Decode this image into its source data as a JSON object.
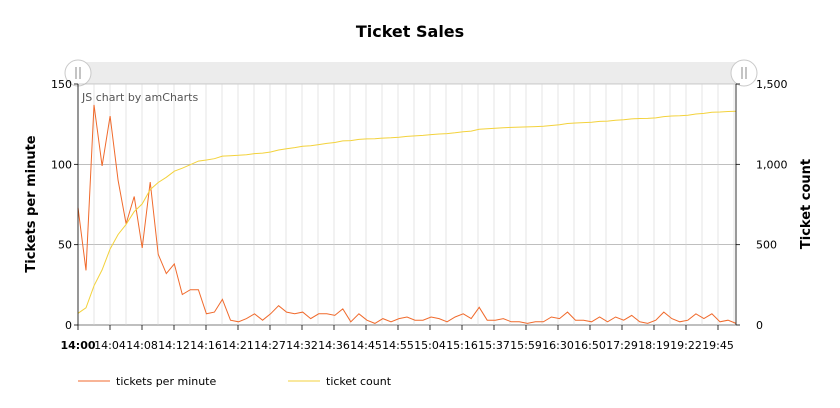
{
  "colors": {
    "tickets_per_minute": "#f06a2c",
    "ticket_count": "#f3d23c",
    "grid": "#cccccc",
    "scrollbar_bg": "#ececec"
  },
  "credit": "JS chart by amCharts",
  "chart_data": {
    "type": "line",
    "title": "Ticket Sales",
    "xlabel": "",
    "y_left_label": "Tickets per minute",
    "y_right_label": "Ticket count",
    "y_left_lim": [
      0,
      150
    ],
    "y_right_lim": [
      0,
      1500
    ],
    "y_left_ticks": [
      "0",
      "50",
      "100",
      "150"
    ],
    "y_right_ticks": [
      "0",
      "500",
      "1,000",
      "1,500"
    ],
    "x_tick_labels": [
      "14:00",
      "14:04",
      "14:08",
      "14:12",
      "14:16",
      "14:21",
      "14:27",
      "14:32",
      "14:36",
      "14:45",
      "14:55",
      "15:04",
      "15:16",
      "15:37",
      "15:59",
      "16:30",
      "16:50",
      "17:29",
      "18:19",
      "19:22",
      "19:45"
    ],
    "grid": true,
    "legend_position": "bottom-left",
    "series": [
      {
        "name": "tickets per minute",
        "axis": "left",
        "values": [
          73,
          34,
          137,
          99,
          130,
          90,
          63,
          80,
          48,
          89,
          44,
          32,
          38,
          19,
          22,
          22,
          7,
          8,
          16,
          3,
          2,
          4,
          7,
          3,
          7,
          12,
          8,
          7,
          8,
          4,
          7,
          7,
          6,
          10,
          2,
          7,
          3,
          1,
          4,
          2,
          4,
          5,
          3,
          3,
          5,
          4,
          2,
          5,
          7,
          4,
          11,
          3,
          3,
          4,
          2,
          2,
          1,
          2,
          2,
          5,
          4,
          8,
          3,
          3,
          2,
          5,
          2,
          5,
          3,
          6,
          2,
          1,
          3,
          8,
          4,
          2,
          3,
          7,
          4,
          7,
          2,
          3,
          1
        ]
      },
      {
        "name": "ticket count",
        "axis": "right",
        "values": [
          73,
          107,
          244,
          343,
          473,
          563,
          626,
          706,
          754,
          843,
          887,
          919,
          957,
          976,
          998,
          1020,
          1027,
          1035,
          1051,
          1054,
          1056,
          1060,
          1067,
          1070,
          1077,
          1089,
          1097,
          1104,
          1112,
          1116,
          1123,
          1130,
          1136,
          1146,
          1148,
          1155,
          1158,
          1159,
          1163,
          1165,
          1169,
          1174,
          1177,
          1180,
          1185,
          1189,
          1191,
          1196,
          1203,
          1207,
          1218,
          1221,
          1224,
          1228,
          1230,
          1232,
          1233,
          1235,
          1237,
          1242,
          1246,
          1254,
          1257,
          1260,
          1262,
          1267,
          1269,
          1274,
          1277,
          1283,
          1285,
          1286,
          1289,
          1297,
          1301,
          1303,
          1306,
          1313,
          1317,
          1324,
          1326,
          1329,
          1330
        ]
      }
    ]
  }
}
